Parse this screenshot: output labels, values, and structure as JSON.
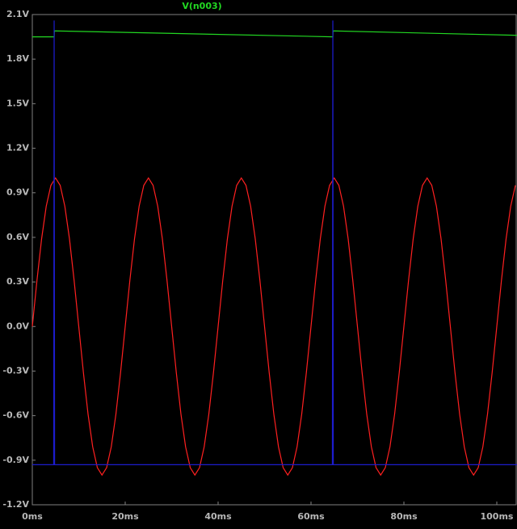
{
  "chart_data": {
    "type": "line",
    "xlim": [
      0,
      104.35
    ],
    "ylim": [
      -1.2,
      2.1
    ],
    "yticks": [
      {
        "value": 2.1,
        "label": "2.1V"
      },
      {
        "value": 1.8,
        "label": "1.8V"
      },
      {
        "value": 1.5,
        "label": "1.5V"
      },
      {
        "value": 1.2,
        "label": "1.2V"
      },
      {
        "value": 0.9,
        "label": "0.9V"
      },
      {
        "value": 0.6,
        "label": "0.6V"
      },
      {
        "value": 0.3,
        "label": "0.3V"
      },
      {
        "value": 0.0,
        "label": "0.0V"
      },
      {
        "value": -0.3,
        "label": "-0.3V"
      },
      {
        "value": -0.6,
        "label": "-0.6V"
      },
      {
        "value": -0.9,
        "label": "-0.9V"
      },
      {
        "value": -1.2,
        "label": "-1.2V"
      }
    ],
    "xticks": [
      {
        "value": 0,
        "label": "0ms"
      },
      {
        "value": 20,
        "label": "20ms"
      },
      {
        "value": 40,
        "label": "40ms"
      },
      {
        "value": 60,
        "label": "60ms"
      },
      {
        "value": 80,
        "label": "80ms"
      },
      {
        "value": 100,
        "label": "100ms"
      }
    ],
    "series": [
      {
        "name": "V(n003)",
        "color": "#22d822",
        "x": [
          0,
          4.7,
          4.75,
          64.7,
          64.75,
          104.35
        ],
        "values": [
          1.95,
          1.95,
          1.99,
          1.95,
          1.99,
          1.96
        ]
      },
      {
        "color": "#ff2020",
        "x": [
          0,
          1,
          2,
          3,
          4,
          5,
          6,
          7,
          8,
          9,
          10,
          11,
          12,
          13,
          14,
          15,
          16,
          17,
          18,
          19,
          20,
          21,
          22,
          23,
          24,
          25,
          26,
          27,
          28,
          29,
          30,
          31,
          32,
          33,
          34,
          35,
          36,
          37,
          38,
          39,
          40,
          41,
          42,
          43,
          44,
          45,
          46,
          47,
          48,
          49,
          50,
          51,
          52,
          53,
          54,
          55,
          56,
          57,
          58,
          59,
          60,
          61,
          62,
          63,
          64,
          65,
          66,
          67,
          68,
          69,
          70,
          71,
          72,
          73,
          74,
          75,
          76,
          77,
          78,
          79,
          80,
          81,
          82,
          83,
          84,
          85,
          86,
          87,
          88,
          89,
          90,
          91,
          92,
          93,
          94,
          95,
          96,
          97,
          98,
          99,
          100,
          101,
          102,
          103,
          104
        ],
        "values": [
          0,
          0.31,
          0.59,
          0.81,
          0.95,
          1,
          0.95,
          0.81,
          0.59,
          0.31,
          0,
          -0.31,
          -0.59,
          -0.81,
          -0.95,
          -1,
          -0.95,
          -0.81,
          -0.59,
          -0.31,
          0,
          0.31,
          0.59,
          0.81,
          0.95,
          1,
          0.95,
          0.81,
          0.59,
          0.31,
          0,
          -0.31,
          -0.59,
          -0.81,
          -0.95,
          -1,
          -0.95,
          -0.81,
          -0.59,
          -0.31,
          0,
          0.31,
          0.59,
          0.81,
          0.95,
          1,
          0.95,
          0.81,
          0.59,
          0.31,
          0,
          -0.31,
          -0.59,
          -0.81,
          -0.95,
          -1,
          -0.95,
          -0.81,
          -0.59,
          -0.31,
          0,
          0.31,
          0.59,
          0.81,
          0.95,
          1,
          0.95,
          0.81,
          0.59,
          0.31,
          0,
          -0.31,
          -0.59,
          -0.81,
          -0.95,
          -1,
          -0.95,
          -0.81,
          -0.59,
          -0.31,
          0,
          0.31,
          0.59,
          0.81,
          0.95,
          1,
          0.95,
          0.81,
          0.59,
          0.31,
          0,
          -0.31,
          -0.59,
          -0.81,
          -0.95,
          -1,
          -0.95,
          -0.81,
          -0.59,
          -0.31,
          0,
          0.31,
          0.59,
          0.81,
          0.95
        ]
      },
      {
        "color": "#1c1ccc",
        "x": [
          0,
          4.6,
          4.7,
          4.8,
          64.6,
          64.7,
          64.8,
          104.35
        ],
        "values": [
          -0.93,
          -0.93,
          2.06,
          -0.93,
          -0.93,
          2.06,
          -0.93,
          -0.93
        ]
      }
    ]
  }
}
